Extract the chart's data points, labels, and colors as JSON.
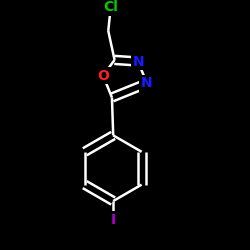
{
  "background_color": "#000000",
  "atom_colors": {
    "C": "#ffffff",
    "N": "#1a1aff",
    "O": "#ff2020",
    "Cl": "#00cc00",
    "I": "#aa00cc",
    "H": "#ffffff"
  },
  "bond_color": "#ffffff",
  "bond_width": 1.8,
  "font_size_atoms": 10,
  "xlim": [
    0.05,
    0.95
  ],
  "ylim": [
    0.02,
    0.98
  ],
  "figsize": [
    2.5,
    2.5
  ],
  "dpi": 100
}
